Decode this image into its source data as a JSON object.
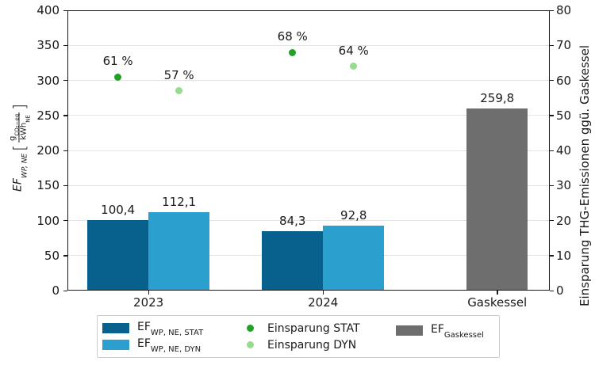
{
  "chart_data": {
    "type": "bar",
    "categories": [
      "2023",
      "2024",
      "Gaskessel"
    ],
    "bar_series": [
      {
        "name": "EF_WP,NE,STAT",
        "color": "#07618c",
        "axis": "left",
        "values": [
          100.4,
          84.3,
          null
        ],
        "value_labels": [
          "100,4",
          "84,3",
          ""
        ]
      },
      {
        "name": "EF_WP,NE,DYN",
        "color": "#2ba0cf",
        "axis": "left",
        "values": [
          112.1,
          92.8,
          null
        ],
        "value_labels": [
          "112,1",
          "92,8",
          ""
        ]
      },
      {
        "name": "EF_Gaskessel",
        "color": "#6e6e6e",
        "axis": "left",
        "values": [
          null,
          null,
          259.8
        ],
        "value_labels": [
          "",
          "",
          "259,8"
        ]
      }
    ],
    "scatter_series": [
      {
        "name": "Einsparung STAT",
        "color": "#21a126",
        "axis": "right",
        "values": [
          61,
          68,
          null
        ],
        "value_labels": [
          "61 %",
          "68 %",
          ""
        ]
      },
      {
        "name": "Einsparung DYN",
        "color": "#96dc8e",
        "axis": "right",
        "values": [
          57,
          64,
          null
        ],
        "value_labels": [
          "57 %",
          "64 %",
          ""
        ]
      }
    ],
    "left_axis": {
      "range": [
        0,
        400
      ],
      "ticks": [
        0,
        50,
        100,
        150,
        200,
        250,
        300,
        350,
        400
      ]
    },
    "right_axis": {
      "range": [
        0,
        80
      ],
      "ticks": [
        0,
        10,
        20,
        30,
        40,
        50,
        60,
        70,
        80
      ]
    },
    "grid": "horizontal",
    "legend_position": "bottom"
  },
  "left_axis_label": {
    "ef": "EF",
    "ef_sub": "WP, NE",
    "bracket_open": "[",
    "num_main": "g",
    "num_sub": "CO₂−eq",
    "den_main": "kWh",
    "den_sub": "NE",
    "bracket_close": "]"
  },
  "right_axis_label": "Einsparung THG-Emissionen ggü. Gaskessel",
  "legend": {
    "items": [
      {
        "type": "patch",
        "color": "#07618c",
        "main": "EF",
        "sub": "WP, NE, STAT"
      },
      {
        "type": "patch",
        "color": "#2ba0cf",
        "main": "EF",
        "sub": "WP, NE, DYN"
      },
      {
        "type": "dot",
        "color": "#21a126",
        "main": "Einsparung STAT",
        "sub": ""
      },
      {
        "type": "dot",
        "color": "#96dc8e",
        "main": "Einsparung DYN",
        "sub": ""
      },
      {
        "type": "patch",
        "color": "#6e6e6e",
        "main": "EF",
        "sub": "Gaskessel"
      }
    ]
  }
}
